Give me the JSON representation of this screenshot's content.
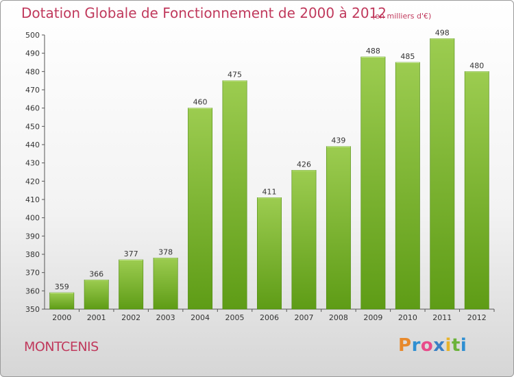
{
  "header": {
    "title": "Dotation Globale de Fonctionnement de 2000 à 2012",
    "subtitle": "(en milliers d'€)"
  },
  "footer": {
    "commune": "MONTCENIS",
    "logo": {
      "letters": [
        "P",
        "r",
        "o",
        "x",
        "i",
        "t",
        "i"
      ],
      "colors": [
        "#e8892b",
        "#2f8fd1",
        "#e84b8a",
        "#3a7fc4",
        "#e8b32b",
        "#6bb33a",
        "#2f8fd1"
      ]
    }
  },
  "chart_data": {
    "type": "bar",
    "title": "Dotation Globale de Fonctionnement de 2000 à 2012",
    "subtitle": "(en milliers d'€)",
    "xlabel": "",
    "ylabel": "",
    "categories": [
      "2000",
      "2001",
      "2002",
      "2003",
      "2004",
      "2005",
      "2006",
      "2007",
      "2008",
      "2009",
      "2010",
      "2011",
      "2012"
    ],
    "values": [
      359,
      366,
      377,
      378,
      460,
      475,
      411,
      426,
      439,
      488,
      485,
      498,
      480
    ],
    "ylim": [
      350,
      500
    ],
    "yticks": [
      350,
      360,
      370,
      380,
      390,
      400,
      410,
      420,
      430,
      440,
      450,
      460,
      470,
      480,
      490,
      500
    ],
    "grid": false,
    "bar_color_top": "#9ccc50",
    "bar_color_bottom": "#5e9c16"
  }
}
